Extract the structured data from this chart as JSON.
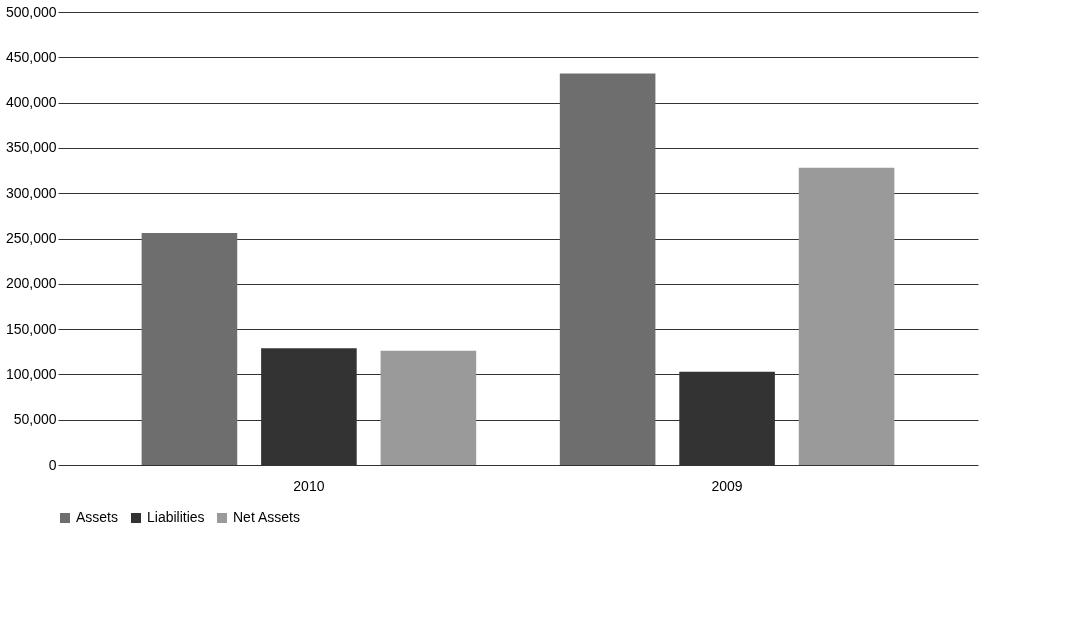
{
  "chart_data": {
    "type": "bar",
    "categories": [
      "2010",
      "2009"
    ],
    "series": [
      {
        "name": "Assets",
        "color": "#6e6e6e",
        "values": [
          256000,
          432000
        ]
      },
      {
        "name": "Liabilities",
        "color": "#333333",
        "values": [
          129000,
          103000
        ]
      },
      {
        "name": "Net Assets",
        "color": "#9a9a9a",
        "values": [
          126000,
          328000
        ]
      }
    ],
    "ylim": [
      0,
      500000
    ],
    "yticks": [
      {
        "value": 0,
        "label": "0"
      },
      {
        "value": 50000,
        "label": "50,000"
      },
      {
        "value": 100000,
        "label": "100,000"
      },
      {
        "value": 150000,
        "label": "150,000"
      },
      {
        "value": 200000,
        "label": "200,000"
      },
      {
        "value": 250000,
        "label": "250,000"
      },
      {
        "value": 300000,
        "label": "300,000"
      },
      {
        "value": 350000,
        "label": "350,000"
      },
      {
        "value": 400000,
        "label": "400,000"
      },
      {
        "value": 450000,
        "label": "450,000"
      },
      {
        "value": 500000,
        "label": "500,000"
      }
    ],
    "grid": "y",
    "legend": "bottom"
  }
}
